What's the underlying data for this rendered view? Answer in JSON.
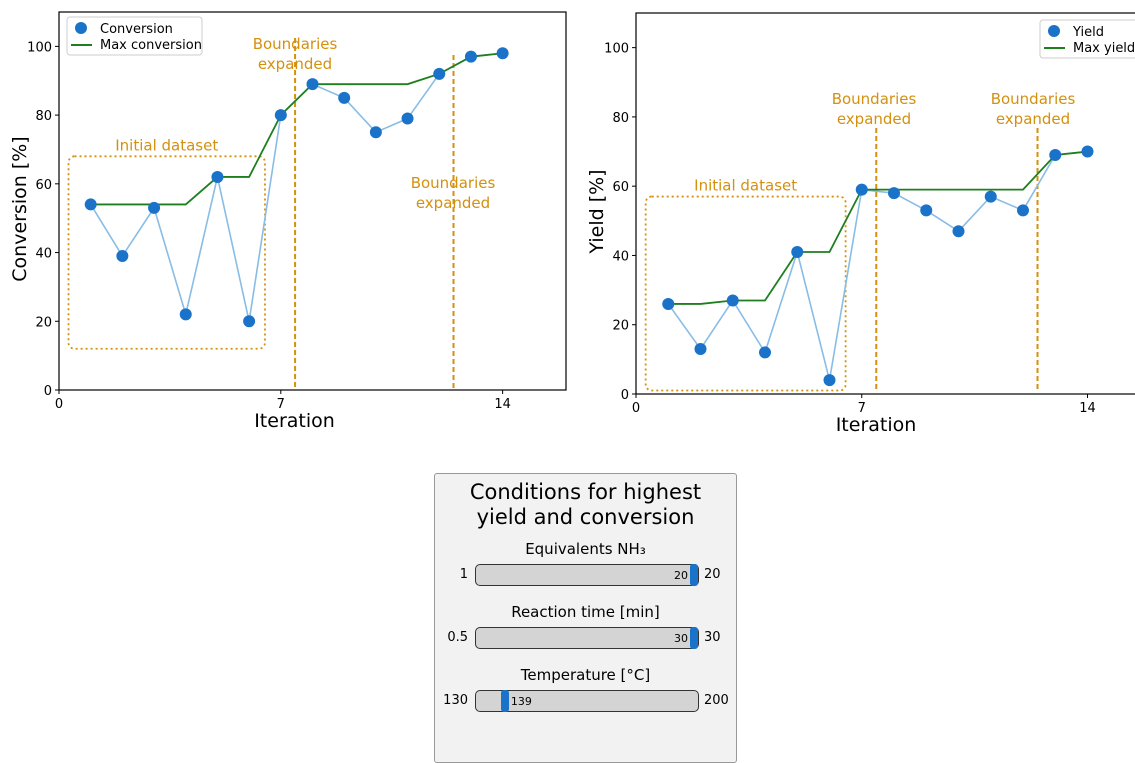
{
  "chart_data": [
    {
      "type": "line",
      "xlabel": "Iteration",
      "ylabel": "Conversion [%]",
      "xlim": [
        0,
        16
      ],
      "ylim": [
        0,
        110
      ],
      "xticks": [
        0,
        7,
        14
      ],
      "yticks": [
        0,
        20,
        40,
        60,
        80,
        100
      ],
      "legend_position": "top-left",
      "series": [
        {
          "name": "Conversion",
          "style": "scatter-with-connecting-line",
          "x": [
            1,
            2,
            3,
            4,
            5,
            6,
            7,
            8,
            9,
            10,
            11,
            12,
            13,
            14
          ],
          "values": [
            54,
            39,
            53,
            22,
            62,
            20,
            80,
            89,
            85,
            75,
            79,
            92,
            97,
            98
          ]
        },
        {
          "name": "Max conversion",
          "style": "step-line",
          "x": [
            1,
            2,
            3,
            4,
            5,
            6,
            7,
            8,
            9,
            10,
            11,
            12,
            13,
            14
          ],
          "values": [
            54,
            54,
            54,
            54,
            62,
            62,
            80,
            89,
            89,
            89,
            89,
            92,
            97,
            98
          ]
        }
      ],
      "annotations": [
        {
          "type": "box",
          "label": "Initial dataset",
          "x_range": [
            0.3,
            6.5
          ],
          "y_range": [
            12,
            68
          ]
        },
        {
          "type": "vline",
          "label": "Boundaries expanded",
          "x": 7.45
        },
        {
          "type": "vline",
          "label": "Boundaries expanded",
          "x": 12.45
        }
      ]
    },
    {
      "type": "line",
      "xlabel": "Iteration",
      "ylabel": "Yield [%]",
      "xlim": [
        0,
        16
      ],
      "ylim": [
        0,
        110
      ],
      "xticks": [
        0,
        7,
        14
      ],
      "yticks": [
        0,
        20,
        40,
        60,
        80,
        100
      ],
      "legend_position": "top-right",
      "series": [
        {
          "name": "Yield",
          "style": "scatter-with-connecting-line",
          "x": [
            1,
            2,
            3,
            4,
            5,
            6,
            7,
            8,
            9,
            10,
            11,
            12,
            13,
            14
          ],
          "values": [
            26,
            13,
            27,
            12,
            41,
            4,
            59,
            58,
            53,
            47,
            57,
            53,
            69,
            70
          ]
        },
        {
          "name": "Max yield",
          "style": "step-line",
          "x": [
            1,
            2,
            3,
            4,
            5,
            6,
            7,
            8,
            9,
            10,
            11,
            12,
            13,
            14
          ],
          "values": [
            26,
            26,
            27,
            27,
            41,
            41,
            59,
            59,
            59,
            59,
            59,
            59,
            69,
            70
          ]
        }
      ],
      "annotations": [
        {
          "type": "box",
          "label": "Initial dataset",
          "x_range": [
            0.3,
            6.5
          ],
          "y_range": [
            1,
            57
          ]
        },
        {
          "type": "vline",
          "label": "Boundaries expanded",
          "x": 7.45
        },
        {
          "type": "vline",
          "label": "Boundaries expanded",
          "x": 12.45
        }
      ]
    }
  ],
  "colors": {
    "points": "#1A73C9",
    "connect_line": "#88BDE6",
    "max_line": "#1E7F1E",
    "annotation": "#D4900F"
  },
  "conditions": {
    "title": "Conditions for highest yield and conversion",
    "params": [
      {
        "label": "Equivalents NH₃",
        "min": "1",
        "max": "20",
        "value": "20",
        "fraction": 1.0
      },
      {
        "label": "Reaction time [min]",
        "min": "0.5",
        "max": "30",
        "value": "30",
        "fraction": 1.0
      },
      {
        "label": "Temperature [°C]",
        "min": "130",
        "max": "200",
        "value": "139",
        "fraction": 0.13
      }
    ]
  }
}
